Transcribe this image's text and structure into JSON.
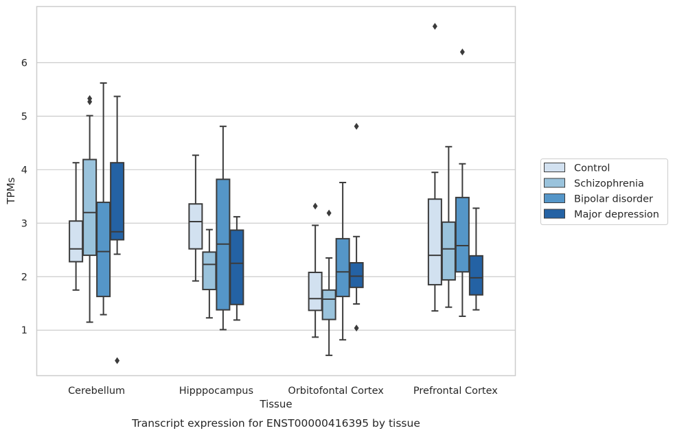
{
  "chart_data": {
    "type": "box",
    "caption": "Transcript expression for ENST00000416395 by tissue",
    "xlabel": "Tissue",
    "ylabel": "TPMs",
    "ylim": [
      0.15,
      7.05
    ],
    "yticks": [
      1,
      2,
      3,
      4,
      5,
      6
    ],
    "grid": true,
    "legend_position": "right",
    "categories": [
      "Cerebellum",
      "Hipppocampus",
      "Orbitofontal Cortex",
      "Prefrontal Cortex"
    ],
    "series": [
      {
        "name": "Control",
        "color": "#d2e1f0",
        "boxes": [
          {
            "whisker_low": 1.75,
            "q1": 2.28,
            "median": 2.52,
            "q3": 3.04,
            "whisker_high": 4.13,
            "outliers": []
          },
          {
            "whisker_low": 1.92,
            "q1": 2.52,
            "median": 3.03,
            "q3": 3.36,
            "whisker_high": 4.27,
            "outliers": []
          },
          {
            "whisker_low": 0.87,
            "q1": 1.37,
            "median": 1.59,
            "q3": 2.08,
            "whisker_high": 2.96,
            "outliers": [
              3.32
            ]
          },
          {
            "whisker_low": 1.36,
            "q1": 1.85,
            "median": 2.4,
            "q3": 3.45,
            "whisker_high": 3.95,
            "outliers": [
              6.68
            ]
          }
        ]
      },
      {
        "name": "Schizophrenia",
        "color": "#9ac3dc",
        "boxes": [
          {
            "whisker_low": 1.15,
            "q1": 2.4,
            "median": 3.2,
            "q3": 4.19,
            "whisker_high": 5.01,
            "outliers": [
              5.27,
              5.33
            ]
          },
          {
            "whisker_low": 1.23,
            "q1": 1.76,
            "median": 2.23,
            "q3": 2.46,
            "whisker_high": 2.88,
            "outliers": []
          },
          {
            "whisker_low": 0.53,
            "q1": 1.2,
            "median": 1.58,
            "q3": 1.75,
            "whisker_high": 2.35,
            "outliers": [
              3.19
            ]
          },
          {
            "whisker_low": 1.43,
            "q1": 1.94,
            "median": 2.52,
            "q3": 3.02,
            "whisker_high": 4.43,
            "outliers": []
          }
        ]
      },
      {
        "name": "Bipolar disorder",
        "color": "#5596c8",
        "boxes": [
          {
            "whisker_low": 1.29,
            "q1": 1.63,
            "median": 2.47,
            "q3": 3.39,
            "whisker_high": 5.62,
            "outliers": []
          },
          {
            "whisker_low": 1.01,
            "q1": 1.38,
            "median": 2.61,
            "q3": 3.82,
            "whisker_high": 4.81,
            "outliers": []
          },
          {
            "whisker_low": 0.82,
            "q1": 1.63,
            "median": 2.09,
            "q3": 2.71,
            "whisker_high": 3.76,
            "outliers": []
          },
          {
            "whisker_low": 1.26,
            "q1": 2.09,
            "median": 2.58,
            "q3": 3.48,
            "whisker_high": 4.11,
            "outliers": [
              6.2
            ]
          }
        ]
      },
      {
        "name": "Major depression",
        "color": "#2462a4",
        "boxes": [
          {
            "whisker_low": 2.42,
            "q1": 2.69,
            "median": 2.84,
            "q3": 4.13,
            "whisker_high": 5.37,
            "outliers": [
              0.43
            ]
          },
          {
            "whisker_low": 1.19,
            "q1": 1.48,
            "median": 2.25,
            "q3": 2.87,
            "whisker_high": 3.12,
            "outliers": []
          },
          {
            "whisker_low": 1.49,
            "q1": 1.8,
            "median": 2.01,
            "q3": 2.26,
            "whisker_high": 2.75,
            "outliers": [
              4.81,
              1.04
            ]
          },
          {
            "whisker_low": 1.38,
            "q1": 1.66,
            "median": 1.98,
            "q3": 2.39,
            "whisker_high": 3.28,
            "outliers": []
          }
        ]
      }
    ]
  }
}
